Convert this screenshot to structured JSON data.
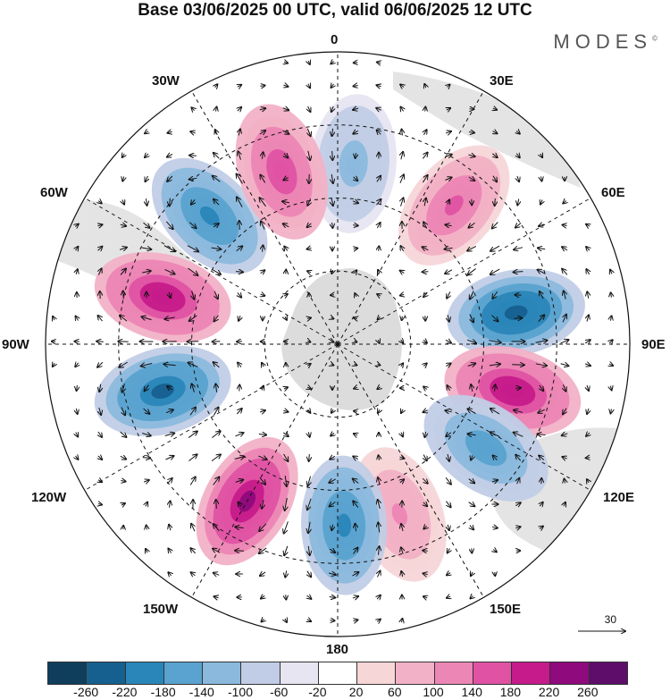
{
  "title": "Base 03/06/2025 00 UTC, valid 06/06/2025 12 UTC",
  "brand": "MODES",
  "brand_mark": "©",
  "longitude_labels": {
    "top": "0",
    "top_left": "30W",
    "top_right": "30E",
    "left_upper": "60W",
    "right_upper": "60E",
    "left": "90W",
    "right": "90E",
    "left_lower": "120W",
    "right_lower": "120E",
    "bottom_left": "150W",
    "bottom_right": "150E",
    "bottom": "180"
  },
  "reference_vector": {
    "label": "30"
  },
  "colorbar": {
    "colors": [
      "#0f3e5c",
      "#16608f",
      "#2a86b8",
      "#5aa2cf",
      "#8bb9dd",
      "#c1cde6",
      "#e6e5f1",
      "#ffffff",
      "#f7d6d8",
      "#f2b1c6",
      "#ec86b5",
      "#e052a4",
      "#c61b8a",
      "#8f0a7c",
      "#5e0d6b"
    ],
    "tick_labels": [
      "-260",
      "-220",
      "-180",
      "-140",
      "-100",
      "-60",
      "-20",
      "20",
      "60",
      "100",
      "140",
      "180",
      "220",
      "260"
    ]
  },
  "anomaly_centers": [
    {
      "name": "neg-top",
      "lon_deg": 5,
      "value": -120
    },
    {
      "name": "pos-30e",
      "lon_deg": 40,
      "value": 150
    },
    {
      "name": "neg-75e",
      "lon_deg": 80,
      "value": -240
    },
    {
      "name": "pos-100e",
      "lon_deg": 105,
      "value": 220
    },
    {
      "name": "neg-125e",
      "lon_deg": 125,
      "value": -160
    },
    {
      "name": "pos-150e",
      "lon_deg": 160,
      "value": 110
    },
    {
      "name": "neg-180",
      "lon_deg": 178,
      "value": -200
    },
    {
      "name": "pos-150w",
      "lon_deg": -150,
      "value": 240
    },
    {
      "name": "neg-110w",
      "lon_deg": -105,
      "value": -230
    },
    {
      "name": "pos-75w",
      "lon_deg": -75,
      "value": 220
    },
    {
      "name": "neg-45w",
      "lon_deg": -45,
      "value": -200
    },
    {
      "name": "pos-20w",
      "lon_deg": -18,
      "value": 170
    }
  ]
}
